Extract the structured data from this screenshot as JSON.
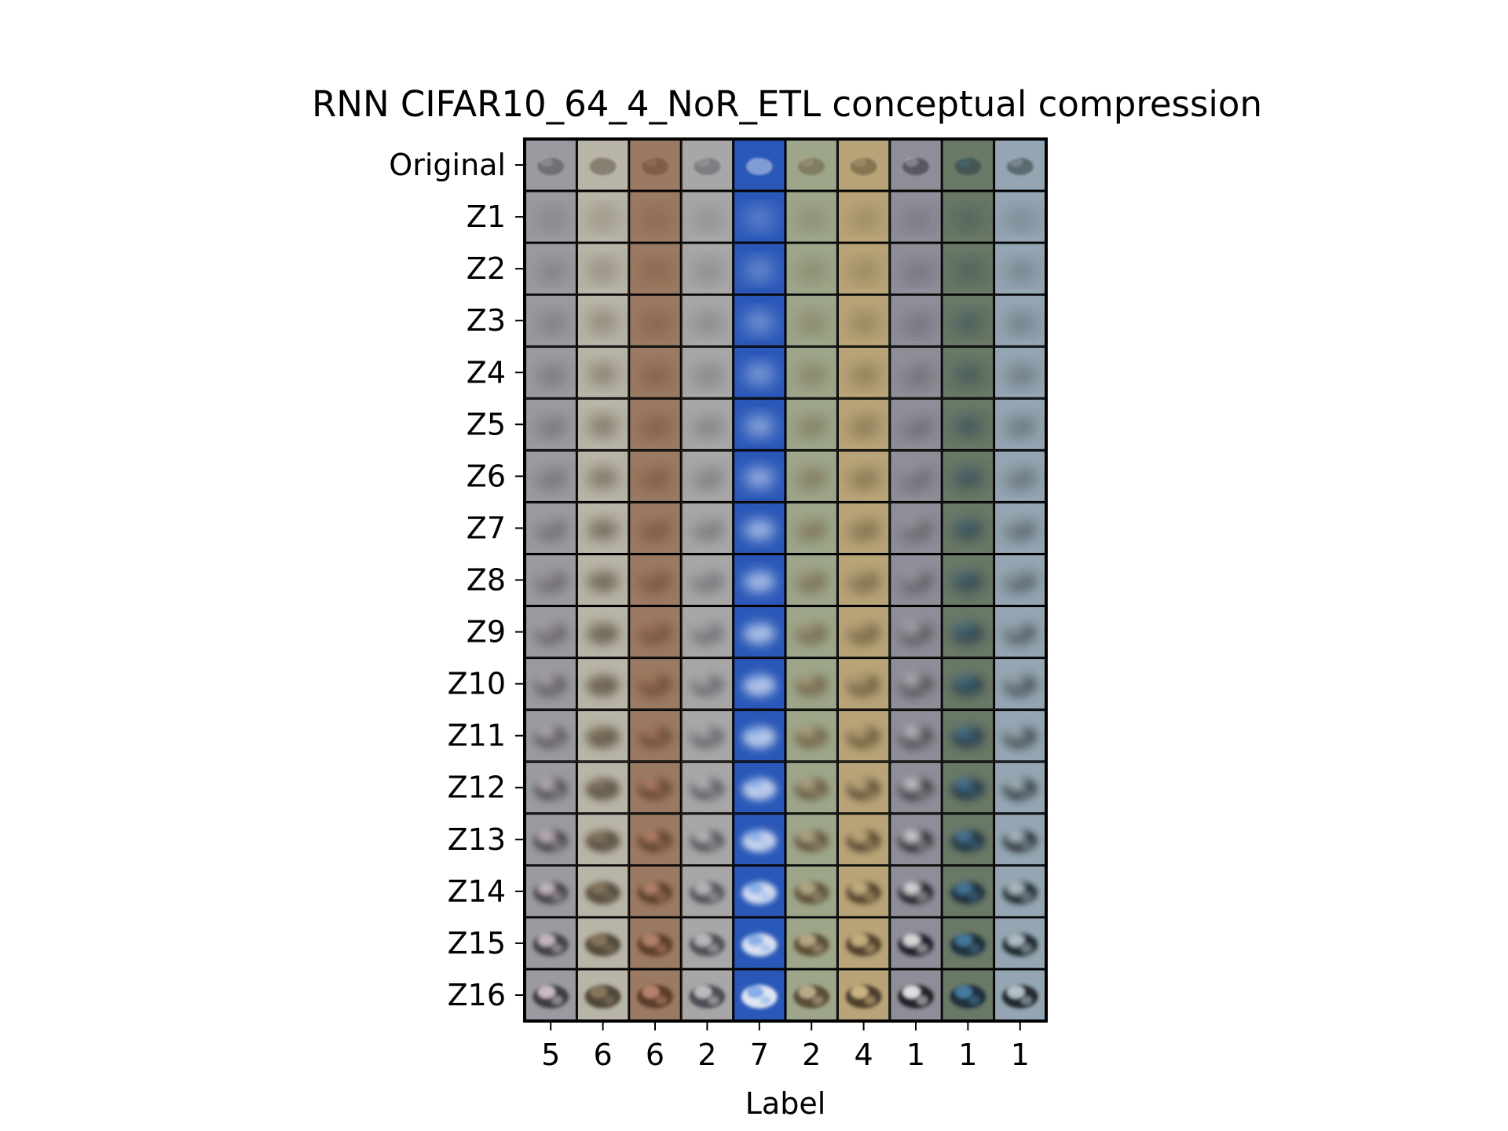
{
  "chart_data": {
    "type": "image_grid",
    "title": "RNN CIFAR10_64_4_NoR_ETL conceptual compression",
    "xlabel": "Label",
    "ylabel": "",
    "row_labels": [
      "Original",
      "Z1",
      "Z2",
      "Z3",
      "Z4",
      "Z5",
      "Z6",
      "Z7",
      "Z8",
      "Z9",
      "Z10",
      "Z11",
      "Z12",
      "Z13",
      "Z14",
      "Z15",
      "Z16"
    ],
    "column_labels": [
      "5",
      "6",
      "6",
      "2",
      "7",
      "2",
      "4",
      "1",
      "1",
      "1"
    ],
    "column_colors": [
      {
        "bg": "#9a9aa0",
        "obj": "#3a3a40",
        "accent": "#d8c8d0"
      },
      {
        "bg": "#b8b4a6",
        "obj": "#4c4234",
        "accent": "#8a7a62"
      },
      {
        "bg": "#9a7a62",
        "obj": "#5a3a26",
        "accent": "#c08a74"
      },
      {
        "bg": "#a8a6a6",
        "obj": "#4a4a52",
        "accent": "#c8c8cc"
      },
      {
        "bg": "#2a58b8",
        "obj": "#eaeef6",
        "accent": "#7aa6e8"
      },
      {
        "bg": "#9ea68a",
        "obj": "#5a4a32",
        "accent": "#c2b492"
      },
      {
        "bg": "#b8a478",
        "obj": "#4a3a26",
        "accent": "#d8c08c"
      },
      {
        "bg": "#8e8e98",
        "obj": "#1a1a22",
        "accent": "#f4f4f6"
      },
      {
        "bg": "#6a7866",
        "obj": "#1a2a3a",
        "accent": "#4a82a8"
      },
      {
        "bg": "#94a6b2",
        "obj": "#1a2228",
        "accent": "#c4d2da"
      }
    ]
  }
}
